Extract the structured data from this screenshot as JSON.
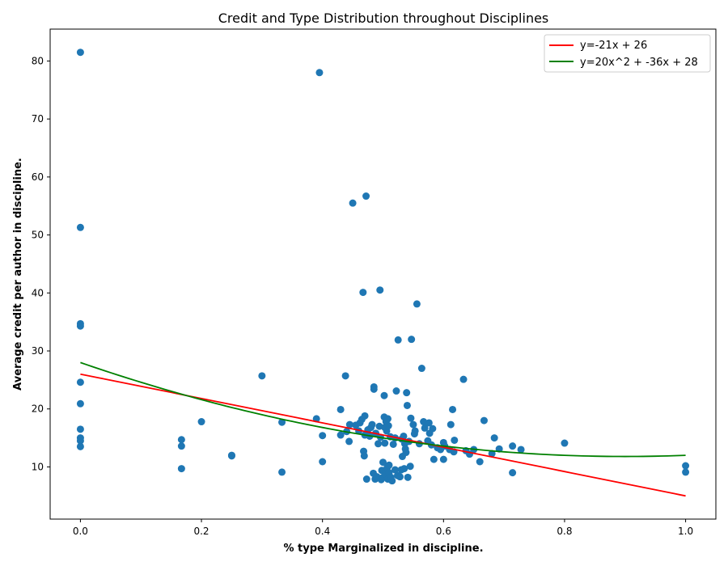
{
  "chart_data": {
    "type": "scatter",
    "title": "Credit and Type Distribution throughout Disciplines",
    "xlabel": "% type Marginalized in discipline.",
    "ylabel": "Average credit per author in discipline.",
    "xlim": [
      -0.05,
      1.05
    ],
    "ylim": [
      1,
      85.5
    ],
    "xticks": [
      0.0,
      0.2,
      0.4,
      0.6,
      0.8,
      1.0
    ],
    "xtick_labels": [
      "0.0",
      "0.2",
      "0.4",
      "0.6",
      "0.8",
      "1.0"
    ],
    "yticks": [
      10,
      20,
      30,
      40,
      50,
      60,
      70,
      80
    ],
    "ytick_labels": [
      "10",
      "20",
      "30",
      "40",
      "50",
      "60",
      "70",
      "80"
    ],
    "grid": false,
    "legend_position": "top-right",
    "colors": {
      "points": "#1f77b4",
      "linear_fit": "#ff0000",
      "quadratic_fit": "#008000"
    },
    "series": [
      {
        "name": "y=-21x + 26",
        "kind": "line",
        "color": "#ff0000",
        "coefficients": [
          -21,
          26
        ]
      },
      {
        "name": "y=20x^2 + -36x + 28",
        "kind": "line",
        "color": "#008000",
        "coefficients": [
          20,
          -36,
          28
        ]
      }
    ],
    "points": [
      [
        0.0,
        81.5
      ],
      [
        0.0,
        51.3
      ],
      [
        0.0,
        34.7
      ],
      [
        0.0,
        34.3
      ],
      [
        0.0,
        24.6
      ],
      [
        0.0,
        20.9
      ],
      [
        0.0,
        16.5
      ],
      [
        0.0,
        15.0
      ],
      [
        0.0,
        14.5
      ],
      [
        0.0,
        13.5
      ],
      [
        0.167,
        14.7
      ],
      [
        0.167,
        13.6
      ],
      [
        0.167,
        9.7
      ],
      [
        0.2,
        17.8
      ],
      [
        0.25,
        11.9
      ],
      [
        0.25,
        12.0
      ],
      [
        0.3,
        25.7
      ],
      [
        0.333,
        17.7
      ],
      [
        0.333,
        9.1
      ],
      [
        0.39,
        18.3
      ],
      [
        0.395,
        78.0
      ],
      [
        0.4,
        15.4
      ],
      [
        0.4,
        10.9
      ],
      [
        0.43,
        19.9
      ],
      [
        0.43,
        15.5
      ],
      [
        0.438,
        25.7
      ],
      [
        0.44,
        16.1
      ],
      [
        0.444,
        14.4
      ],
      [
        0.445,
        17.3
      ],
      [
        0.45,
        55.5
      ],
      [
        0.455,
        17.2
      ],
      [
        0.46,
        16.2
      ],
      [
        0.462,
        17.6
      ],
      [
        0.465,
        18.2
      ],
      [
        0.467,
        40.1
      ],
      [
        0.468,
        12.7
      ],
      [
        0.469,
        11.9
      ],
      [
        0.47,
        18.8
      ],
      [
        0.47,
        15.5
      ],
      [
        0.472,
        56.7
      ],
      [
        0.473,
        7.9
      ],
      [
        0.475,
        16.4
      ],
      [
        0.478,
        15.3
      ],
      [
        0.48,
        16.8
      ],
      [
        0.482,
        17.3
      ],
      [
        0.484,
        8.9
      ],
      [
        0.485,
        23.8
      ],
      [
        0.485,
        23.4
      ],
      [
        0.487,
        7.9
      ],
      [
        0.488,
        15.8
      ],
      [
        0.49,
        8.3
      ],
      [
        0.492,
        14.0
      ],
      [
        0.494,
        17.0
      ],
      [
        0.495,
        40.5
      ],
      [
        0.496,
        15.1
      ],
      [
        0.497,
        7.8
      ],
      [
        0.498,
        9.4
      ],
      [
        0.5,
        10.8
      ],
      [
        0.5,
        8.2
      ],
      [
        0.502,
        22.3
      ],
      [
        0.502,
        18.6
      ],
      [
        0.503,
        16.8
      ],
      [
        0.503,
        14.1
      ],
      [
        0.504,
        8.8
      ],
      [
        0.505,
        17.8
      ],
      [
        0.506,
        16.2
      ],
      [
        0.507,
        9.9
      ],
      [
        0.508,
        18.3
      ],
      [
        0.508,
        7.9
      ],
      [
        0.509,
        17.1
      ],
      [
        0.51,
        10.3
      ],
      [
        0.51,
        9.0
      ],
      [
        0.512,
        15.2
      ],
      [
        0.513,
        8.2
      ],
      [
        0.515,
        7.6
      ],
      [
        0.517,
        13.9
      ],
      [
        0.52,
        9.5
      ],
      [
        0.52,
        15.0
      ],
      [
        0.522,
        23.1
      ],
      [
        0.524,
        8.5
      ],
      [
        0.525,
        31.9
      ],
      [
        0.528,
        8.3
      ],
      [
        0.53,
        9.5
      ],
      [
        0.531,
        14.8
      ],
      [
        0.532,
        11.8
      ],
      [
        0.534,
        15.3
      ],
      [
        0.535,
        9.7
      ],
      [
        0.536,
        14.0
      ],
      [
        0.537,
        13.1
      ],
      [
        0.538,
        12.5
      ],
      [
        0.539,
        22.8
      ],
      [
        0.54,
        20.6
      ],
      [
        0.541,
        8.2
      ],
      [
        0.543,
        14.4
      ],
      [
        0.545,
        10.1
      ],
      [
        0.546,
        18.4
      ],
      [
        0.547,
        32.0
      ],
      [
        0.55,
        17.3
      ],
      [
        0.552,
        15.7
      ],
      [
        0.553,
        16.2
      ],
      [
        0.556,
        38.1
      ],
      [
        0.56,
        14.0
      ],
      [
        0.564,
        27.0
      ],
      [
        0.567,
        17.8
      ],
      [
        0.569,
        16.7
      ],
      [
        0.571,
        17.5
      ],
      [
        0.574,
        14.5
      ],
      [
        0.576,
        17.6
      ],
      [
        0.577,
        15.8
      ],
      [
        0.58,
        13.8
      ],
      [
        0.582,
        16.6
      ],
      [
        0.584,
        11.3
      ],
      [
        0.59,
        13.3
      ],
      [
        0.595,
        13.0
      ],
      [
        0.6,
        14.2
      ],
      [
        0.6,
        11.3
      ],
      [
        0.602,
        13.6
      ],
      [
        0.61,
        13.0
      ],
      [
        0.612,
        17.3
      ],
      [
        0.615,
        19.9
      ],
      [
        0.617,
        12.6
      ],
      [
        0.618,
        14.6
      ],
      [
        0.633,
        25.1
      ],
      [
        0.637,
        12.8
      ],
      [
        0.643,
        12.2
      ],
      [
        0.65,
        13.0
      ],
      [
        0.66,
        10.9
      ],
      [
        0.667,
        18.0
      ],
      [
        0.68,
        12.3
      ],
      [
        0.684,
        15.0
      ],
      [
        0.692,
        13.1
      ],
      [
        0.714,
        13.6
      ],
      [
        0.714,
        9.0
      ],
      [
        0.728,
        13.0
      ],
      [
        0.8,
        14.1
      ],
      [
        1.0,
        10.2
      ],
      [
        1.0,
        9.1
      ]
    ]
  }
}
